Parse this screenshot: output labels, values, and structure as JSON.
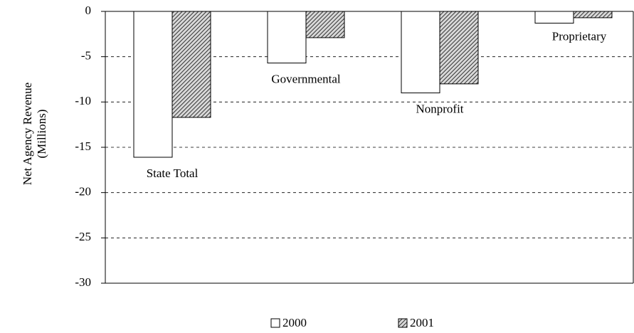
{
  "chart_data": {
    "type": "bar",
    "y_label": [
      "Net Agency Revenue",
      "(Millions)"
    ],
    "categories": [
      "State Total",
      "Governmental",
      "Nonprofit",
      "Proprietary"
    ],
    "series": [
      {
        "name": "2000",
        "color": "#ffffff",
        "values": [
          -16.1,
          -5.7,
          -9.0,
          -1.3
        ]
      },
      {
        "name": "2001",
        "color": "#555555",
        "pattern": "hatch",
        "values": [
          -11.7,
          -2.9,
          -8.0,
          -0.7
        ]
      }
    ],
    "ylim": [
      -30,
      0
    ],
    "yticks": [
      -30,
      -25,
      -20,
      -15,
      -10,
      -5,
      0
    ],
    "grid": true,
    "legend": "bottom"
  }
}
